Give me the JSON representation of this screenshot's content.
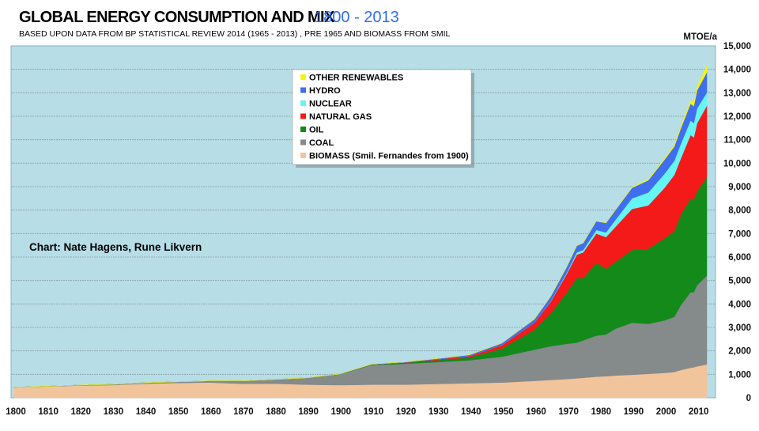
{
  "chart_data": {
    "type": "area",
    "stacked": true,
    "title": "GLOBAL ENERGY CONSUMPTION AND MIX",
    "title_years": "1800 - 2013",
    "subtitle": "BASED UPON DATA FROM BP STATISTICAL REVIEW 2014 (1965 - 2013) , PRE 1965 AND BIOMASS FROM SMIL",
    "ylabel": "MTOE/a",
    "credit": "Chart: Nate Hagens, Rune Likvern",
    "xlim": [
      1800,
      2013
    ],
    "ylim": [
      0,
      15000
    ],
    "grid": true,
    "legend_position": "top-center",
    "background": "#b7dde6",
    "x_ticks": [
      "1800",
      "1810",
      "1820",
      "1830",
      "1840",
      "1850",
      "1860",
      "1870",
      "1880",
      "1890",
      "1900",
      "1910",
      "1920",
      "1930",
      "1940",
      "1950",
      "1960",
      "1970",
      "1980",
      "1990",
      "2000",
      "2010"
    ],
    "y_ticks": [
      "0",
      "1,000",
      "2,000",
      "3,000",
      "4,000",
      "5,000",
      "6,000",
      "7,000",
      "8,000",
      "9,000",
      "10,000",
      "11,000",
      "12,000",
      "13,000",
      "14,000",
      "15,000"
    ],
    "x": [
      1800,
      1810,
      1820,
      1830,
      1840,
      1850,
      1860,
      1870,
      1880,
      1890,
      1900,
      1910,
      1920,
      1930,
      1940,
      1950,
      1960,
      1965,
      1970,
      1973,
      1975,
      1979,
      1982,
      1985,
      1990,
      1995,
      2000,
      2003,
      2005,
      2008,
      2009,
      2010,
      2013
    ],
    "series": [
      {
        "name": "BIOMASS (Smil. Fernandes from 1900)",
        "color": "#f2c49b",
        "values": [
          440,
          480,
          520,
          540,
          600,
          630,
          650,
          600,
          600,
          560,
          540,
          560,
          560,
          590,
          620,
          650,
          720,
          760,
          800,
          830,
          850,
          900,
          920,
          950,
          980,
          1020,
          1060,
          1100,
          1180,
          1280,
          1300,
          1340,
          1420
        ]
      },
      {
        "name": "COAL",
        "color": "#858a8b",
        "values": [
          10,
          10,
          20,
          30,
          40,
          50,
          70,
          120,
          180,
          290,
          460,
          840,
          890,
          930,
          980,
          1100,
          1330,
          1440,
          1500,
          1520,
          1600,
          1750,
          1780,
          2000,
          2220,
          2130,
          2240,
          2350,
          2770,
          3220,
          3200,
          3460,
          3780
        ]
      },
      {
        "name": "OIL",
        "color": "#138a1a",
        "values": [
          0,
          0,
          0,
          0,
          0,
          0,
          0,
          0,
          0,
          0,
          10,
          20,
          40,
          80,
          120,
          350,
          850,
          1400,
          2200,
          2750,
          2650,
          3100,
          2800,
          2850,
          3100,
          3200,
          3500,
          3650,
          3850,
          4000,
          3950,
          4000,
          4200
        ]
      },
      {
        "name": "NATURAL GAS",
        "color": "#f51a1a",
        "values": [
          0,
          0,
          0,
          0,
          0,
          0,
          0,
          0,
          0,
          0,
          0,
          5,
          15,
          40,
          60,
          150,
          300,
          500,
          800,
          1000,
          1100,
          1250,
          1350,
          1500,
          1750,
          1850,
          2150,
          2400,
          2400,
          2700,
          2650,
          2900,
          3050
        ]
      },
      {
        "name": "NUCLEAR",
        "color": "#66f5f5",
        "values": [
          0,
          0,
          0,
          0,
          0,
          0,
          0,
          0,
          0,
          0,
          0,
          0,
          0,
          0,
          0,
          0,
          0,
          20,
          50,
          100,
          100,
          150,
          200,
          300,
          450,
          550,
          600,
          600,
          620,
          620,
          610,
          630,
          560
        ]
      },
      {
        "name": "HYDRO",
        "color": "#3f6ff0",
        "values": [
          0,
          0,
          0,
          0,
          0,
          0,
          0,
          0,
          0,
          0,
          0,
          10,
          20,
          30,
          50,
          80,
          150,
          200,
          250,
          280,
          300,
          380,
          400,
          420,
          450,
          520,
          600,
          610,
          660,
          720,
          720,
          770,
          860
        ]
      },
      {
        "name": "OTHER RENEWABLES",
        "color": "#f5f50a",
        "values": [
          0,
          0,
          0,
          0,
          0,
          0,
          0,
          0,
          0,
          0,
          0,
          0,
          0,
          0,
          0,
          0,
          0,
          0,
          0,
          0,
          0,
          0,
          0,
          0,
          30,
          40,
          50,
          60,
          80,
          120,
          140,
          160,
          280
        ]
      }
    ]
  }
}
